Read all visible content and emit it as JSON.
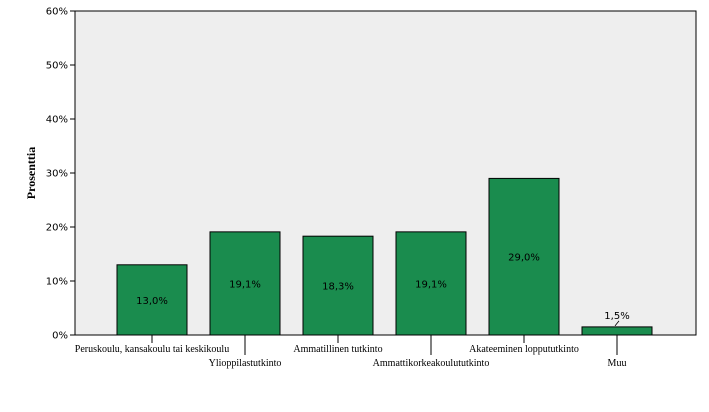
{
  "chart_data": {
    "type": "bar",
    "xlabel": "",
    "ylabel": "Prosenttia",
    "ylim": [
      0,
      60
    ],
    "yticks": [
      "0%",
      "10%",
      "20%",
      "30%",
      "40%",
      "50%",
      "60%"
    ],
    "categories": [
      "Peruskoulu, kansakoulu tai keskikoulu",
      "Ylioppilastutkinto",
      "Ammatillinen tutkinto",
      "Ammattikorkeakoulututkinto",
      "Akateeminen loppututkinto",
      "Muu"
    ],
    "values": [
      13.0,
      19.1,
      18.3,
      19.1,
      29.0,
      1.5
    ],
    "data_labels": [
      "13,0%",
      "19,1%",
      "18,3%",
      "19,1%",
      "29,0%",
      "1,5%"
    ],
    "colors": {
      "bar": "#1a8c4e",
      "plot_bg": "#eeeeee",
      "border": "#000000"
    },
    "grid": false,
    "legend": "none"
  }
}
